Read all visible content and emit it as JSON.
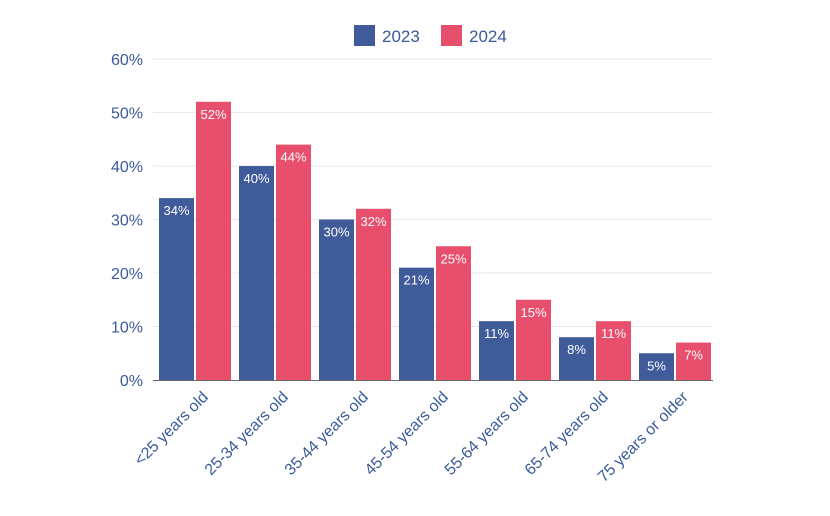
{
  "chart_data": {
    "type": "bar",
    "categories": [
      "<25 years old",
      "25-34 years old",
      "35-44 years old",
      "45-54 years old",
      "55-64 years old",
      "65-74 years old",
      "75 years or older"
    ],
    "series": [
      {
        "name": "2023",
        "color": "#3f5b9a",
        "values": [
          34,
          40,
          30,
          21,
          11,
          8,
          5
        ]
      },
      {
        "name": "2024",
        "color": "#e84f6c",
        "values": [
          52,
          44,
          32,
          25,
          15,
          11,
          7
        ]
      }
    ],
    "ylim": [
      0,
      60
    ],
    "yticks": [
      0,
      10,
      20,
      30,
      40,
      50,
      60
    ],
    "value_suffix": "%",
    "grid": true,
    "legend_position": "top-center",
    "title": "",
    "xlabel": "",
    "ylabel": ""
  }
}
